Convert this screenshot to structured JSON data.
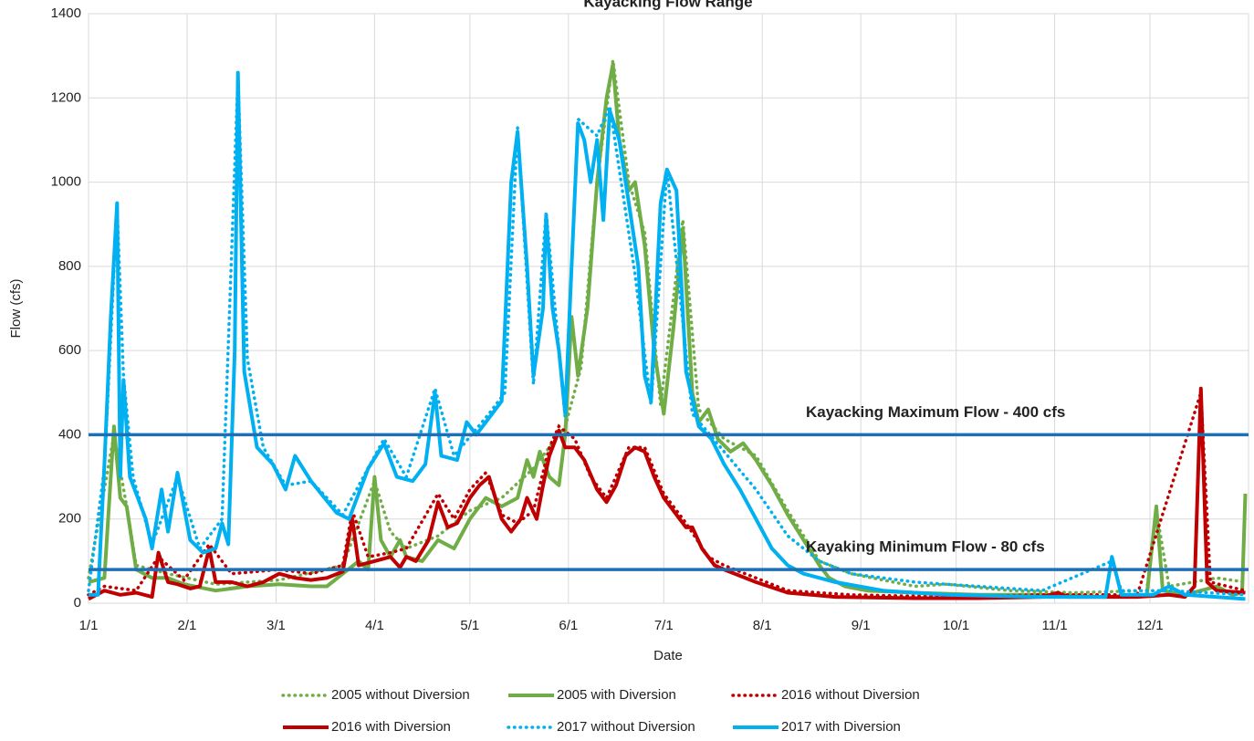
{
  "chart_data": {
    "type": "line",
    "title": "Kayacking Flow Range",
    "x_label": "Date",
    "y_label": "Flow (cfs)",
    "xlim": [
      0,
      365
    ],
    "xticks": [
      {
        "value": 0,
        "label": "1/1"
      },
      {
        "value": 31,
        "label": "2/1"
      },
      {
        "value": 59,
        "label": "3/1"
      },
      {
        "value": 90,
        "label": "4/1"
      },
      {
        "value": 120,
        "label": "5/1"
      },
      {
        "value": 151,
        "label": "6/1"
      },
      {
        "value": 181,
        "label": "7/1"
      },
      {
        "value": 212,
        "label": "8/1"
      },
      {
        "value": 243,
        "label": "9/1"
      },
      {
        "value": 273,
        "label": "10/1"
      },
      {
        "value": 304,
        "label": "11/1"
      },
      {
        "value": 334,
        "label": "12/1"
      }
    ],
    "ylim": [
      0,
      1400
    ],
    "yticks": [
      0,
      200,
      400,
      600,
      800,
      1000,
      1200,
      1400
    ],
    "grid": true,
    "reference_lines": [
      {
        "value": 400,
        "label": "Kayacking Maximum Flow - 400 cfs",
        "color": "#1f6fb4"
      },
      {
        "value": 80,
        "label": "Kayaking Minimum Flow - 80 cfs",
        "color": "#1f6fb4"
      }
    ],
    "series": [
      {
        "name": "2005 without Diversion",
        "color": "#70ad47",
        "style": "dotted",
        "x": [
          0,
          8,
          12,
          15,
          25,
          40,
          60,
          80,
          90,
          95,
          100,
          110,
          120,
          130,
          140,
          150,
          155,
          160,
          165,
          170,
          175,
          180,
          187,
          192,
          200,
          210,
          220,
          230,
          240,
          260,
          270,
          290,
          310,
          333,
          336,
          340,
          355,
          364
        ],
        "values": [
          60,
          400,
          230,
          90,
          70,
          45,
          55,
          90,
          290,
          170,
          130,
          160,
          220,
          250,
          320,
          420,
          560,
          1000,
          1290,
          1000,
          880,
          470,
          910,
          460,
          390,
          350,
          220,
          100,
          70,
          40,
          45,
          30,
          25,
          30,
          220,
          40,
          60,
          50
        ]
      },
      {
        "name": "2005 with Diversion",
        "color": "#70ad47",
        "style": "solid",
        "x": [
          0,
          5,
          8,
          10,
          12,
          15,
          20,
          25,
          30,
          40,
          50,
          60,
          70,
          75,
          80,
          85,
          88,
          90,
          92,
          95,
          98,
          100,
          105,
          110,
          115,
          120,
          125,
          130,
          135,
          138,
          140,
          142,
          145,
          148,
          150,
          152,
          154,
          157,
          160,
          163,
          165,
          167,
          170,
          172,
          175,
          178,
          181,
          184,
          187,
          190,
          192,
          195,
          198,
          202,
          206,
          210,
          215,
          220,
          225,
          230,
          233,
          238,
          245,
          260,
          280,
          300,
          320,
          333,
          336,
          338,
          345,
          355,
          360,
          363,
          364
        ],
        "values": [
          50,
          60,
          420,
          250,
          230,
          80,
          60,
          60,
          45,
          30,
          40,
          45,
          40,
          40,
          70,
          100,
          80,
          300,
          150,
          110,
          150,
          110,
          100,
          150,
          130,
          200,
          250,
          230,
          250,
          340,
          300,
          360,
          300,
          280,
          400,
          680,
          540,
          700,
          1000,
          1200,
          1280,
          1100,
          980,
          1000,
          850,
          600,
          450,
          650,
          890,
          500,
          430,
          460,
          390,
          360,
          380,
          340,
          280,
          210,
          150,
          90,
          60,
          40,
          30,
          25,
          20,
          20,
          15,
          20,
          230,
          30,
          20,
          40,
          20,
          25,
          260
        ]
      },
      {
        "name": "2016 without Diversion",
        "color": "#c00000",
        "style": "dotted",
        "x": [
          0,
          5,
          15,
          22,
          30,
          38,
          45,
          60,
          70,
          80,
          83,
          88,
          95,
          100,
          110,
          115,
          120,
          125,
          130,
          135,
          140,
          145,
          148,
          153,
          158,
          163,
          170,
          175,
          181,
          188,
          195,
          200,
          210,
          220,
          240,
          270,
          300,
          330,
          350,
          353,
          364
        ],
        "values": [
          20,
          40,
          30,
          110,
          55,
          140,
          70,
          80,
          70,
          90,
          220,
          110,
          120,
          130,
          260,
          200,
          270,
          310,
          210,
          190,
          220,
          370,
          420,
          390,
          300,
          250,
          370,
          370,
          260,
          190,
          110,
          90,
          60,
          30,
          20,
          15,
          20,
          20,
          500,
          50,
          30
        ]
      },
      {
        "name": "2016 with Diversion",
        "color": "#c00000",
        "style": "solid",
        "x": [
          0,
          5,
          10,
          15,
          20,
          22,
          25,
          28,
          32,
          35,
          38,
          40,
          45,
          50,
          55,
          60,
          65,
          70,
          75,
          80,
          83,
          85,
          90,
          95,
          98,
          100,
          103,
          107,
          110,
          113,
          116,
          120,
          123,
          126,
          130,
          133,
          136,
          138,
          141,
          143,
          145,
          148,
          150,
          153,
          156,
          160,
          163,
          166,
          169,
          172,
          175,
          178,
          181,
          185,
          188,
          190,
          193,
          197,
          200,
          210,
          220,
          235,
          260,
          280,
          300,
          305,
          308,
          330,
          340,
          345,
          348,
          350,
          352,
          355,
          364
        ],
        "values": [
          10,
          30,
          20,
          25,
          15,
          120,
          50,
          45,
          35,
          40,
          130,
          50,
          50,
          40,
          50,
          70,
          60,
          55,
          60,
          75,
          200,
          90,
          100,
          110,
          85,
          110,
          100,
          150,
          240,
          180,
          190,
          250,
          280,
          300,
          200,
          170,
          200,
          250,
          200,
          280,
          350,
          410,
          370,
          370,
          340,
          270,
          240,
          280,
          350,
          370,
          360,
          300,
          250,
          210,
          180,
          180,
          130,
          90,
          80,
          50,
          25,
          15,
          12,
          12,
          15,
          25,
          15,
          15,
          20,
          15,
          40,
          510,
          50,
          30,
          25
        ]
      },
      {
        "name": "2017 without Diversion",
        "color": "#00b0f0",
        "style": "dotted",
        "x": [
          0,
          5,
          9,
          11,
          14,
          20,
          28,
          35,
          42,
          47,
          50,
          55,
          62,
          70,
          80,
          93,
          100,
          109,
          115,
          126,
          131,
          135,
          140,
          144,
          150,
          154,
          160,
          164,
          172,
          177,
          182,
          190,
          200,
          210,
          220,
          230,
          240,
          260,
          280,
          300,
          322,
          325,
          340,
          364
        ],
        "values": [
          30,
          320,
          940,
          540,
          300,
          140,
          300,
          130,
          200,
          1250,
          580,
          370,
          280,
          290,
          210,
          390,
          300,
          510,
          350,
          450,
          500,
          1130,
          520,
          930,
          440,
          1150,
          1110,
          1180,
          780,
          470,
          1030,
          450,
          360,
          270,
          160,
          100,
          70,
          50,
          40,
          30,
          100,
          30,
          30,
          20
        ]
      },
      {
        "name": "2017 with Diversion",
        "color": "#00b0f0",
        "style": "solid",
        "x": [
          0,
          3,
          5,
          7,
          9,
          10,
          11,
          13,
          18,
          20,
          23,
          25,
          28,
          32,
          36,
          40,
          42,
          44,
          46,
          47,
          49,
          53,
          58,
          62,
          65,
          70,
          78,
          82,
          88,
          93,
          97,
          102,
          106,
          109,
          111,
          116,
          119,
          122,
          126,
          130,
          133,
          135,
          138,
          140,
          143,
          144,
          146,
          148,
          150,
          152,
          154,
          156,
          158,
          160,
          162,
          164,
          167,
          170,
          173,
          175,
          177,
          180,
          182,
          185,
          188,
          192,
          196,
          200,
          205,
          210,
          215,
          220,
          225,
          235,
          250,
          270,
          300,
          320,
          322,
          325,
          335,
          340,
          345,
          364
        ],
        "values": [
          20,
          20,
          330,
          680,
          950,
          300,
          530,
          300,
          200,
          130,
          270,
          170,
          310,
          150,
          120,
          130,
          190,
          140,
          600,
          1260,
          550,
          370,
          330,
          270,
          350,
          290,
          215,
          200,
          320,
          380,
          300,
          290,
          330,
          500,
          350,
          340,
          430,
          400,
          440,
          480,
          1000,
          1120,
          800,
          540,
          700,
          920,
          700,
          600,
          450,
          800,
          1140,
          1100,
          1000,
          1100,
          910,
          1170,
          1100,
          950,
          800,
          540,
          480,
          950,
          1030,
          980,
          550,
          420,
          390,
          330,
          270,
          200,
          130,
          90,
          70,
          50,
          30,
          20,
          15,
          15,
          110,
          20,
          20,
          40,
          20,
          10
        ]
      }
    ]
  }
}
